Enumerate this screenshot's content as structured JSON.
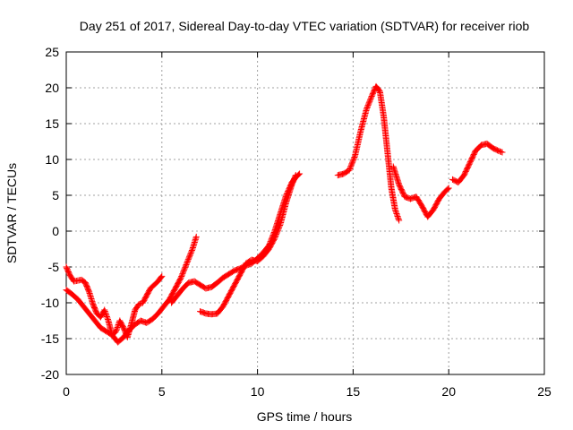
{
  "chart_data": {
    "type": "scatter",
    "title": "Day 251 of 2017, Sidereal Day-to-day VTEC variation (SDTVAR) for receiver riob",
    "xlabel": "GPS time / hours",
    "ylabel": "SDTVAR / TECUs",
    "xlim": [
      0,
      25
    ],
    "ylim": [
      -20,
      25
    ],
    "xticks": [
      0,
      5,
      10,
      15,
      20,
      25
    ],
    "yticks": [
      -20,
      -15,
      -10,
      -5,
      0,
      5,
      10,
      15,
      20,
      25
    ],
    "grid": true,
    "marker": "+",
    "color": "#ff0000",
    "series": [
      {
        "x": [
          0.0,
          0.2,
          0.4,
          0.6,
          0.8,
          1.0,
          1.2,
          1.4,
          1.6,
          1.8,
          2.0,
          2.2,
          2.4,
          2.6,
          2.8,
          3.0,
          3.2,
          3.4,
          3.6,
          3.8,
          4.0,
          4.2,
          4.4,
          4.6,
          4.8,
          5.0
        ],
        "y": [
          -5.0,
          -6.2,
          -7.0,
          -6.9,
          -6.8,
          -7.2,
          -8.5,
          -10.2,
          -11.5,
          -12.0,
          -11.0,
          -12.5,
          -14.5,
          -14.0,
          -12.5,
          -13.5,
          -14.8,
          -13.0,
          -11.0,
          -10.2,
          -10.0,
          -9.0,
          -8.0,
          -7.5,
          -7.0,
          -6.3
        ]
      },
      {
        "x": [
          0.0,
          0.3,
          0.6,
          0.9,
          1.2,
          1.5,
          1.8,
          2.1,
          2.4,
          2.7,
          3.0,
          3.3,
          3.6,
          3.9,
          4.2,
          4.5,
          4.8,
          5.1,
          5.4,
          5.7,
          6.0,
          6.3,
          6.6,
          6.8
        ],
        "y": [
          -8.2,
          -8.8,
          -9.5,
          -10.5,
          -11.5,
          -12.5,
          -13.5,
          -14.0,
          -14.5,
          -15.5,
          -14.8,
          -13.8,
          -13.0,
          -12.5,
          -12.8,
          -12.3,
          -11.5,
          -10.5,
          -9.5,
          -8.0,
          -6.5,
          -4.5,
          -2.5,
          -0.8
        ]
      },
      {
        "x": [
          5.5,
          5.8,
          6.1,
          6.4,
          6.7,
          7.0,
          7.3,
          7.6,
          7.9,
          8.2,
          8.5,
          8.8,
          9.1,
          9.4,
          9.7,
          10.0,
          10.3,
          10.6,
          10.9,
          11.2,
          11.5,
          11.8,
          12.0,
          12.2
        ],
        "y": [
          -10.0,
          -9.0,
          -8.0,
          -7.2,
          -7.0,
          -7.5,
          -8.0,
          -7.8,
          -7.2,
          -6.5,
          -6.0,
          -5.5,
          -5.2,
          -4.8,
          -4.5,
          -3.8,
          -3.0,
          -2.0,
          0.0,
          2.5,
          5.0,
          6.8,
          7.5,
          8.0
        ]
      },
      {
        "x": [
          7.0,
          7.3,
          7.6,
          7.9,
          8.2,
          8.5,
          8.8,
          9.1,
          9.4,
          9.7,
          10.0,
          10.3,
          10.6,
          10.9,
          11.2,
          11.5,
          11.8,
          12.0
        ],
        "y": [
          -11.2,
          -11.5,
          -11.6,
          -11.5,
          -10.5,
          -9.0,
          -7.5,
          -6.0,
          -4.5,
          -4.0,
          -4.2,
          -3.5,
          -2.5,
          -1.0,
          1.0,
          4.0,
          6.5,
          7.8
        ]
      },
      {
        "x": [
          14.2,
          14.5,
          14.8,
          15.1,
          15.4,
          15.7,
          16.0,
          16.2,
          16.4,
          16.6,
          16.8,
          17.0,
          17.2,
          17.4
        ],
        "y": [
          7.8,
          8.0,
          8.5,
          10.5,
          14.0,
          17.0,
          19.0,
          20.2,
          19.5,
          16.0,
          11.0,
          6.0,
          3.0,
          1.5
        ]
      },
      {
        "x": [
          17.1,
          17.4,
          17.7,
          18.0,
          18.3,
          18.6,
          18.9,
          19.2,
          19.5,
          19.8,
          20.0
        ],
        "y": [
          9.0,
          6.5,
          4.8,
          4.5,
          4.8,
          3.5,
          2.0,
          3.0,
          4.5,
          5.5,
          6.0
        ]
      },
      {
        "x": [
          20.2,
          20.5,
          20.8,
          21.1,
          21.4,
          21.7,
          22.0,
          22.3,
          22.6,
          22.8
        ],
        "y": [
          7.2,
          6.8,
          7.8,
          9.5,
          11.2,
          12.0,
          12.2,
          11.6,
          11.2,
          11.0
        ]
      }
    ]
  }
}
